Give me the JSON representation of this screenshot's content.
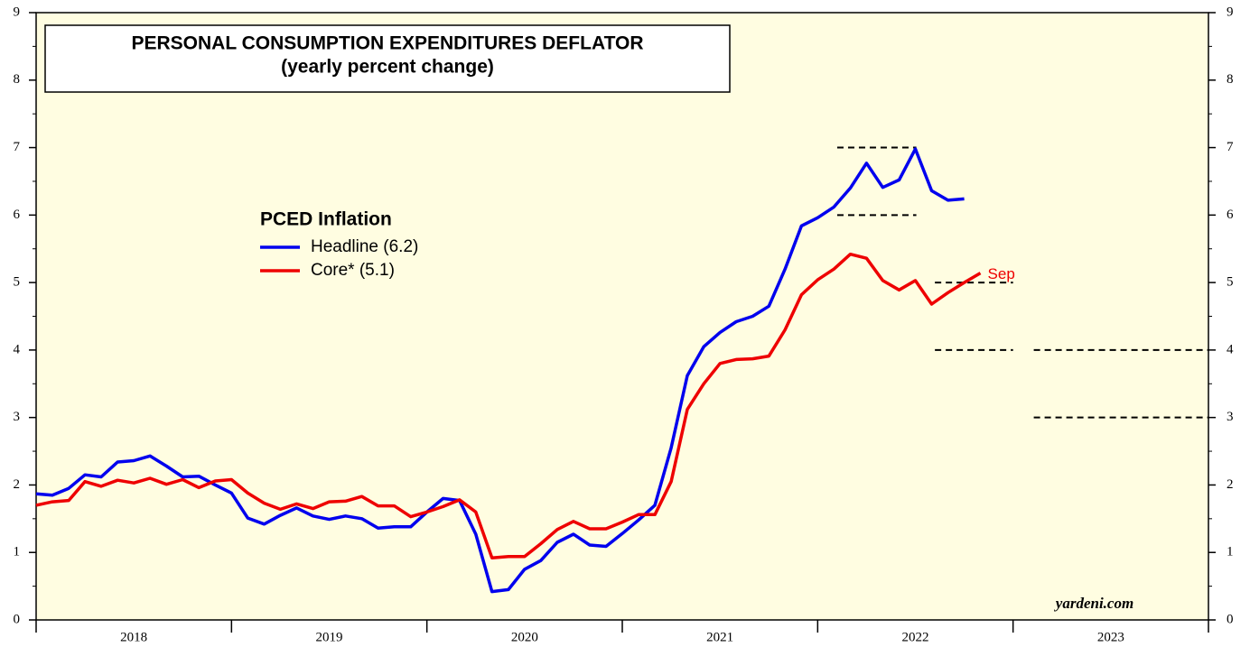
{
  "chart_data": {
    "type": "line",
    "title": "PERSONAL CONSUMPTION EXPENDITURES DEFLATOR",
    "subtitle": "(yearly percent change)",
    "legend_title": "PCED Inflation",
    "annotation": "Sep",
    "source": "yardeni.com",
    "background": "#fffde1",
    "x": [
      2018,
      2018.083,
      2018.167,
      2018.25,
      2018.333,
      2018.417,
      2018.5,
      2018.583,
      2018.667,
      2018.75,
      2018.833,
      2018.917,
      2019,
      2019.083,
      2019.167,
      2019.25,
      2019.333,
      2019.417,
      2019.5,
      2019.583,
      2019.667,
      2019.75,
      2019.833,
      2019.917,
      2020,
      2020.083,
      2020.167,
      2020.25,
      2020.333,
      2020.417,
      2020.5,
      2020.583,
      2020.667,
      2020.75,
      2020.833,
      2020.917,
      2021,
      2021.083,
      2021.167,
      2021.25,
      2021.333,
      2021.417,
      2021.5,
      2021.583,
      2021.667,
      2021.75,
      2021.833,
      2021.917,
      2022,
      2022.083,
      2022.167,
      2022.25,
      2022.333,
      2022.417,
      2022.5,
      2022.583,
      2022.667,
      2022.75,
      2022.833
    ],
    "series": [
      {
        "name": "Headline (6.2)",
        "color": "#0000ee",
        "values": [
          1.87,
          1.85,
          1.95,
          2.15,
          2.12,
          2.34,
          2.36,
          2.43,
          2.28,
          2.12,
          2.13,
          2.0,
          1.88,
          1.51,
          1.42,
          1.55,
          1.66,
          1.54,
          1.49,
          1.54,
          1.5,
          1.36,
          1.38,
          1.38,
          1.6,
          1.8,
          1.77,
          1.27,
          0.42,
          0.45,
          0.75,
          0.88,
          1.15,
          1.27,
          1.11,
          1.09,
          1.28,
          1.48,
          1.7,
          2.55,
          3.62,
          4.05,
          4.26,
          4.42,
          4.5,
          4.65,
          5.2,
          5.84,
          5.96,
          6.12,
          6.4,
          6.77,
          6.41,
          6.52,
          6.98,
          6.36,
          6.22,
          6.24,
          null
        ]
      },
      {
        "name": "Core* (5.1)",
        "color": "#ee0000",
        "values": [
          1.7,
          1.75,
          1.77,
          2.05,
          1.98,
          2.07,
          2.03,
          2.1,
          2.01,
          2.08,
          1.96,
          2.06,
          2.08,
          1.88,
          1.73,
          1.64,
          1.72,
          1.65,
          1.75,
          1.76,
          1.83,
          1.69,
          1.69,
          1.53,
          1.6,
          1.68,
          1.78,
          1.6,
          0.92,
          0.94,
          0.94,
          1.13,
          1.34,
          1.46,
          1.35,
          1.35,
          1.45,
          1.56,
          1.56,
          2.05,
          3.12,
          3.5,
          3.8,
          3.86,
          3.87,
          3.91,
          4.3,
          4.82,
          5.04,
          5.2,
          5.42,
          5.36,
          5.03,
          4.89,
          5.03,
          4.68,
          4.85,
          5.0,
          5.14
        ]
      }
    ],
    "forecast_ranges": [
      {
        "x_start": 2022.1,
        "x_end": 2022.505,
        "y": 7
      },
      {
        "x_start": 2022.1,
        "x_end": 2022.505,
        "y": 6
      },
      {
        "x_start": 2022.6,
        "x_end": 2023.0,
        "y": 5
      },
      {
        "x_start": 2022.6,
        "x_end": 2023.0,
        "y": 4
      },
      {
        "x_start": 2023.106,
        "x_end": 2024.0,
        "y": 4
      },
      {
        "x_start": 2023.106,
        "x_end": 2024.0,
        "y": 3
      }
    ],
    "xlim": [
      2018,
      2024
    ],
    "xticks": [
      2018,
      2019,
      2020,
      2021,
      2022,
      2023,
      2024
    ],
    "x_labels": [
      {
        "value": 2018.5,
        "label": "2018"
      },
      {
        "value": 2019.5,
        "label": "2019"
      },
      {
        "value": 2020.5,
        "label": "2020"
      },
      {
        "value": 2021.5,
        "label": "2021"
      },
      {
        "value": 2022.5,
        "label": "2022"
      },
      {
        "value": 2023.5,
        "label": "2023"
      }
    ],
    "ylim": [
      0,
      9
    ],
    "yticks": [
      0,
      1,
      2,
      3,
      4,
      5,
      6,
      7,
      8,
      9
    ],
    "yminorticks": [
      0.5,
      1.5,
      2.5,
      3.5,
      4.5,
      5.5,
      6.5,
      7.5,
      8.5
    ],
    "right_axis": true
  }
}
